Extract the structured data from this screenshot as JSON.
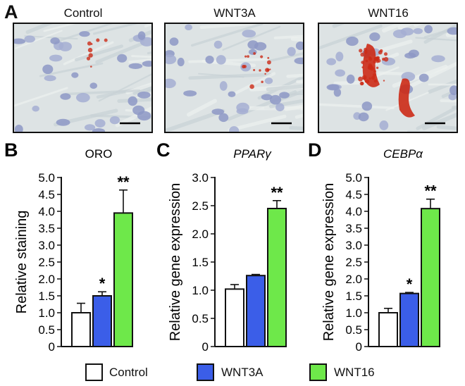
{
  "panel_a": {
    "letter": "A",
    "images": [
      {
        "title": "Control",
        "stain": "low"
      },
      {
        "title": "WNT3A",
        "stain": "medium"
      },
      {
        "title": "WNT16",
        "stain": "high"
      }
    ],
    "scale_bar_color": "#000000"
  },
  "colors": {
    "Control": "#ffffff",
    "WNT3A": "#3b5ee8",
    "WNT16": "#6ee84a",
    "stain": "#cc2a16"
  },
  "chart_data": [
    {
      "type": "bar",
      "letter": "B",
      "title": "ORO",
      "title_italic": false,
      "ylabel": "Relative staining",
      "ylim": [
        0,
        5.0
      ],
      "yticks": [
        "0",
        "0.5",
        "1.0",
        "1.5",
        "2.0",
        "2.5",
        "3.0",
        "3.5",
        "4.0",
        "4.5",
        "5.0"
      ],
      "categories": [
        "Control",
        "WNT3A",
        "WNT16"
      ],
      "values": [
        1.0,
        1.5,
        3.95
      ],
      "errors": [
        0.28,
        0.12,
        0.68
      ],
      "significance": [
        "",
        "*",
        "**"
      ]
    },
    {
      "type": "bar",
      "letter": "C",
      "title": "PPARγ",
      "title_italic": true,
      "ylabel": "Relative gene expression",
      "ylim": [
        0,
        3.0
      ],
      "yticks": [
        "0",
        "0.5",
        "1.0",
        "1.5",
        "2.0",
        "2.5",
        "3.0"
      ],
      "categories": [
        "Control",
        "WNT3A",
        "WNT16"
      ],
      "values": [
        1.02,
        1.26,
        2.45
      ],
      "errors": [
        0.08,
        0.02,
        0.14
      ],
      "significance": [
        "",
        "",
        "**"
      ]
    },
    {
      "type": "bar",
      "letter": "D",
      "title": "CEBPα",
      "title_italic": true,
      "ylabel": "Relative gene expression",
      "ylim": [
        0,
        5.0
      ],
      "yticks": [
        "0",
        "0.5",
        "1.0",
        "1.5",
        "2.0",
        "2.5",
        "3.0",
        "3.5",
        "4.0",
        "4.5",
        "5.0"
      ],
      "categories": [
        "Control",
        "WNT3A",
        "WNT16"
      ],
      "values": [
        1.0,
        1.57,
        4.08
      ],
      "errors": [
        0.13,
        0.03,
        0.28
      ],
      "significance": [
        "",
        "*",
        "**"
      ]
    }
  ],
  "legend": [
    {
      "label": "Control",
      "color": "#ffffff"
    },
    {
      "label": "WNT3A",
      "color": "#3b5ee8"
    },
    {
      "label": "WNT16",
      "color": "#6ee84a"
    }
  ]
}
